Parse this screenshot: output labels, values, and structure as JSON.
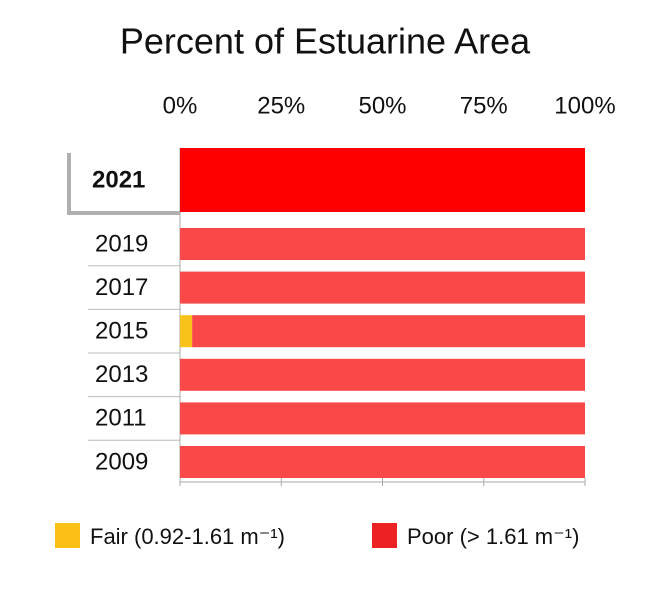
{
  "chart_data": {
    "type": "stacked-barh",
    "title": "Percent of Estuarine Area",
    "categories": [
      "2021",
      "2019",
      "2017",
      "2015",
      "2013",
      "2011",
      "2009"
    ],
    "series": [
      {
        "name": "Fair (0.92-1.61 m⁻¹)",
        "color": "#f9c21a",
        "legend_color": "#fbbf16",
        "values": [
          0,
          0,
          0,
          3,
          0,
          0,
          0
        ]
      },
      {
        "name": "Poor (> 1.61 m⁻¹)",
        "color": "#f94848",
        "legend_color": "#ed2024",
        "values": [
          100,
          100,
          100,
          97,
          100,
          100,
          100
        ]
      }
    ],
    "highlight_category": "2021",
    "highlight_color": "#ff0000",
    "xlim": [
      0,
      100
    ],
    "xticks": [
      {
        "value": 0,
        "label": "0%"
      },
      {
        "value": 25,
        "label": "25%"
      },
      {
        "value": 50,
        "label": "50%"
      },
      {
        "value": 75,
        "label": "75%"
      },
      {
        "value": 100,
        "label": "100%"
      }
    ],
    "legend": "bottom"
  }
}
